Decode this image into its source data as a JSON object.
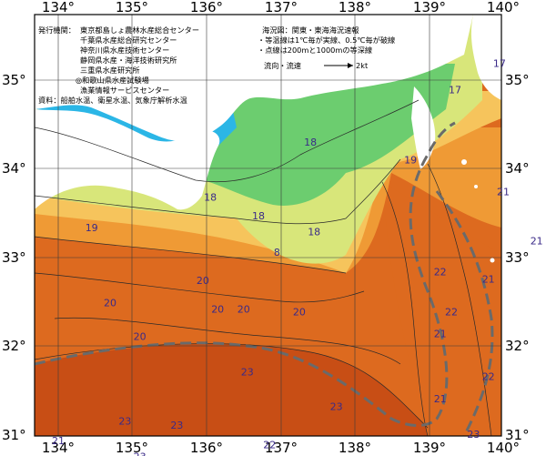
{
  "map": {
    "lon_ticks": [
      "134°",
      "135°",
      "136°",
      "137°",
      "138°",
      "139°",
      "140°"
    ],
    "lat_ticks": [
      "35°",
      "34°",
      "33°",
      "32°",
      "31°"
    ],
    "issuer_title": "発行機関：",
    "issuers": [
      "東京都島しょ農林水産総合センター",
      "千葉県水産総合研究センター",
      "神奈川県水産技術センター",
      "静岡県水産・海洋技術研究所",
      "三重県水産研究所",
      "◎和歌山県水産試験場",
      "漁業情報サービスセンター"
    ],
    "data_source": "資料：船舶水温、衛星水温、気象庁解析水温",
    "chart_title": "海況図：関東・東海海況速報",
    "notes": [
      "・等温線は1℃毎が実線、0.5℃毎が破線",
      "・点線は200mと1000mの等深線"
    ],
    "current_label": "流向・流速",
    "current_scale": "2kt",
    "isotherm_labels": [
      {
        "text": "17",
        "lon": 139.95,
        "lat": 35.15
      },
      {
        "text": "17",
        "lon": 139.35,
        "lat": 34.85
      },
      {
        "text": "18",
        "lon": 137.4,
        "lat": 34.26
      },
      {
        "text": "19",
        "lon": 138.75,
        "lat": 34.06
      },
      {
        "text": "18",
        "lon": 136.05,
        "lat": 33.64
      },
      {
        "text": "18",
        "lon": 136.7,
        "lat": 33.43
      },
      {
        "text": "18",
        "lon": 137.45,
        "lat": 33.25
      },
      {
        "text": "19",
        "lon": 134.45,
        "lat": 33.3
      },
      {
        "text": "8",
        "lon": 136.95,
        "lat": 33.02
      },
      {
        "text": "21",
        "lon": 140.0,
        "lat": 33.7
      },
      {
        "text": "21",
        "lon": 140.45,
        "lat": 33.15
      },
      {
        "text": "22",
        "lon": 139.15,
        "lat": 32.8
      },
      {
        "text": "21",
        "lon": 139.8,
        "lat": 32.72
      },
      {
        "text": "20",
        "lon": 135.95,
        "lat": 32.7
      },
      {
        "text": "20",
        "lon": 134.7,
        "lat": 32.45
      },
      {
        "text": "20",
        "lon": 136.15,
        "lat": 32.38
      },
      {
        "text": "20",
        "lon": 136.5,
        "lat": 32.38
      },
      {
        "text": "20",
        "lon": 137.25,
        "lat": 32.35
      },
      {
        "text": "22",
        "lon": 139.3,
        "lat": 32.35
      },
      {
        "text": "20",
        "lon": 135.1,
        "lat": 32.07
      },
      {
        "text": "21",
        "lon": 139.15,
        "lat": 32.1
      },
      {
        "text": "23",
        "lon": 136.55,
        "lat": 31.67
      },
      {
        "text": "22",
        "lon": 139.8,
        "lat": 31.62
      },
      {
        "text": "21",
        "lon": 139.15,
        "lat": 31.37
      },
      {
        "text": "23",
        "lon": 137.75,
        "lat": 31.28
      },
      {
        "text": "23",
        "lon": 134.9,
        "lat": 31.12
      },
      {
        "text": "23",
        "lon": 135.6,
        "lat": 31.07
      },
      {
        "text": "23",
        "lon": 139.6,
        "lat": 30.97
      },
      {
        "text": "21",
        "lon": 134.0,
        "lat": 30.9
      },
      {
        "text": "22",
        "lon": 136.85,
        "lat": 30.85
      },
      {
        "text": "23",
        "lon": 135.1,
        "lat": 30.72
      },
      {
        "text": "21",
        "lon": 140.1,
        "lat": 30.68
      }
    ],
    "colors": {
      "land": "#ffffff",
      "cold": "#2bb6e6",
      "cool": "#6ccd6f",
      "mild": "#d8e67a",
      "warm": "#f6c45c",
      "warmer": "#ef9a35",
      "hot": "#dd6a1f",
      "hottest": "#c84e15",
      "kuroshio_axis": "#6a6a6a"
    }
  }
}
